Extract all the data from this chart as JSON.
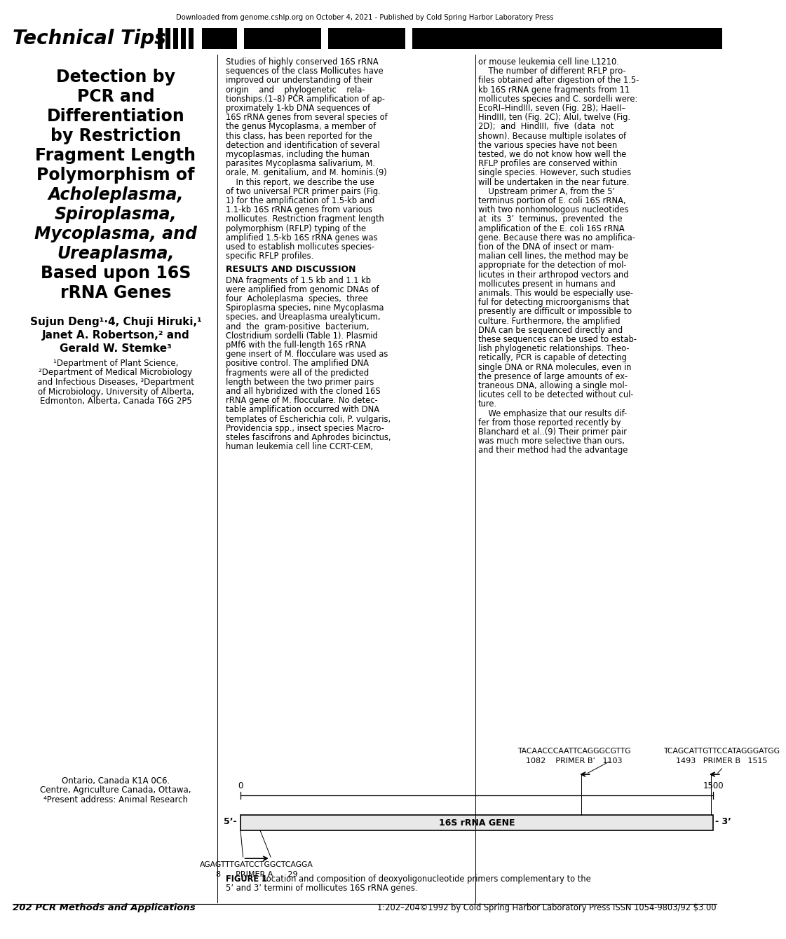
{
  "top_notice": "Downloaded from genome.cshlp.org on October 4, 2021 - Published by Cold Spring Harbor Laboratory Press",
  "header_text": "Technical Tips",
  "title_lines_bold": [
    "Detection by",
    "PCR and",
    "Differentiation",
    "by Restriction",
    "Fragment Length",
    "Polymorphism of"
  ],
  "title_lines_italic": [
    "Acholeplasma,",
    "Spiroplasma,",
    "Mycoplasma, and",
    "Ureaplasma,"
  ],
  "title_lines_bold2": [
    "Based upon 16S",
    "rRNA Genes"
  ],
  "authors_line1": "Sujun Deng¹·4, Chuji Hiruki,¹",
  "authors_line2": "Janet A. Robertson,² and",
  "authors_line3": "Gerald W. Stemke³",
  "affil_lines": [
    "¹Department of Plant Science,",
    "²Department of Medical Microbiology",
    "and Infectious Diseases, ³Department",
    "of Microbiology, University of Alberta,",
    "Edmonton, Alberta, Canada T6G 2P5"
  ],
  "footnote_lines": [
    "⁴Present address: Animal Research",
    "Centre, Agriculture Canada, Ottawa,",
    "Ontario, Canada K1A 0C6."
  ],
  "col_mid_intro": [
    "Studies of highly conserved 16S rRNA",
    "sequences of the class Mollicutes have",
    "improved our understanding of their",
    "origin    and    phylogenetic    rela-",
    "tionships.(1–8) PCR amplification of ap-",
    "proximately 1-kb DNA sequences of",
    "16S rRNA genes from several species of",
    "the genus Mycoplasma, a member of",
    "this class, has been reported for the",
    "detection and identification of several",
    "mycoplasmas, including the human",
    "parasites Mycoplasma salivarium, M.",
    "orale, M. genitalium, and M. hominis.(9)",
    "    In this report, we describe the use",
    "of two universal PCR primer pairs (Fig.",
    "1) for the amplification of 1.5-kb and",
    "1.1-kb 16S rRNA genes from various",
    "mollicutes. Restriction fragment length",
    "polymorphism (RFLP) typing of the",
    "amplified 1.5-kb 16S rRNA genes was",
    "used to establish mollicutes species-",
    "specific RFLP profiles."
  ],
  "results_title": "RESULTS AND DISCUSSION",
  "col_mid_results": [
    "DNA fragments of 1.5 kb and 1.1 kb",
    "were amplified from genomic DNAs of",
    "four  Acholeplasma  species,  three",
    "Spiroplasma species, nine Mycoplasma",
    "species, and Ureaplasma urealyticum,",
    "and  the  gram-positive  bacterium,",
    "Clostridium sordelli (Table 1). Plasmid",
    "pMf6 with the full-length 16S rRNA",
    "gene insert of M. flocculare was used as",
    "positive control. The amplified DNA",
    "fragments were all of the predicted",
    "length between the two primer pairs",
    "and all hybridized with the cloned 16S",
    "rRNA gene of M. flocculare. No detec-",
    "table amplification occurred with DNA",
    "templates of Escherichia coli, P. vulgaris,",
    "Providencia spp., insect species Macro-",
    "steles fascifrons and Aphrodes bicinctus,",
    "human leukemia cell line CCRT-CEM,"
  ],
  "col_right": [
    "or mouse leukemia cell line L1210.",
    "    The number of different RFLP pro-",
    "files obtained after digestion of the 1.5-",
    "kb 16S rRNA gene fragments from 11",
    "mollicutes species and C. sordelli were:",
    "EcoRI–HindIII, seven (Fig. 2B); HaeII–",
    "HindIII, ten (Fig. 2C); AluI, twelve (Fig.",
    "2D);  and  HindIII,  five  (data  not",
    "shown). Because multiple isolates of",
    "the various species have not been",
    "tested, we do not know how well the",
    "RFLP profiles are conserved within",
    "single species. However, such studies",
    "will be undertaken in the near future.",
    "    Upstream primer A, from the 5’",
    "terminus portion of E. coli 16S rRNA,",
    "with two nonhomologous nucleotides",
    "at  its  3’  terminus,  prevented  the",
    "amplification of the E. coli 16S rRNA",
    "gene. Because there was no amplifica-",
    "tion of the DNA of insect or mam-",
    "malian cell lines, the method may be",
    "appropriate for the detection of mol-",
    "licutes in their arthropod vectors and",
    "mollicutes present in humans and",
    "animals. This would be especially use-",
    "ful for detecting microorganisms that",
    "presently are difficult or impossible to",
    "culture. Furthermore, the amplified",
    "DNA can be sequenced directly and",
    "these sequences can be used to estab-",
    "lish phylogenetic relationships. Theo-",
    "retically, PCR is capable of detecting",
    "single DNA or RNA molecules, even in",
    "the presence of large amounts of ex-",
    "traneous DNA, allowing a single mol-",
    "licutes cell to be detected without cul-",
    "ture.",
    "    We emphasize that our results dif-",
    "fer from those reported recently by",
    "Blanchard et al..(9) Their primer pair",
    "was much more selective than ours,",
    "and their method had the advantage"
  ],
  "fig_caption_bold": "FIGURE 1",
  "fig_caption_rest": " Location and composition of deoxyoligonucleotide primers complementary to the",
  "fig_caption_line2": "5’ and 3’ termini of mollicutes 16S rRNA genes.",
  "footer_left": "202 PCR Methods and Applications",
  "footer_right": "1:202–204©1992 by Cold Spring Harbor Laboratory Press ISSN 1054-9803/92 $3.00",
  "gene_label": "16S rRNA GENE",
  "prime5": "5’-",
  "prime3": "- 3’",
  "pb_prime_label_top": "TACAACCCAATTCAGGGCGTTG",
  "pb_prime_label_bot": "1082    PRIMER B’   1103",
  "pb_label_top": "TCAGCATTGTTCCATAGGGATGG",
  "pb_label_bot": "1493   PRIMER B   1515",
  "pa_seq": "AGAGTTTGATCCTGGCTCAGGA",
  "pa_label": "8      PRIMER A      29",
  "ruler_left": "0",
  "ruler_right": "1500",
  "page_bg": "#ffffff",
  "text_color": "#000000",
  "header_bar_color": "#000000",
  "link_color": "#0000ff"
}
